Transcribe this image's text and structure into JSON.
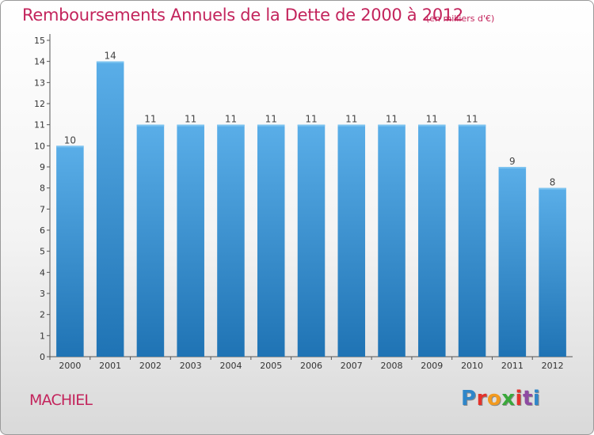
{
  "title": "Remboursements Annuels de la Dette de 2000 à 2012",
  "subtitle": "(en milliers d'€)",
  "commune": "MACHIEL",
  "logo": {
    "letters": [
      "P",
      "r",
      "o",
      "x",
      "i",
      "t",
      "i"
    ],
    "colors": [
      "#2f86c9",
      "#e4322b",
      "#f29a1f",
      "#3aa83a",
      "#e4322b",
      "#8e4aa2",
      "#2f86c9"
    ]
  },
  "colors": {
    "text_accent": "#c3245c",
    "bar_top": "#5aaee8",
    "bar_bottom": "#1f73b4"
  },
  "chart_data": {
    "type": "bar",
    "title": "Remboursements Annuels de la Dette de 2000 à 2012",
    "subtitle": "(en milliers d'€)",
    "categories": [
      "2000",
      "2001",
      "2002",
      "2003",
      "2004",
      "2005",
      "2006",
      "2007",
      "2008",
      "2009",
      "2010",
      "2011",
      "2012"
    ],
    "values": [
      10,
      14,
      11,
      11,
      11,
      11,
      11,
      11,
      11,
      11,
      11,
      9,
      8
    ],
    "value_labels": [
      "10",
      "14",
      "11",
      "11",
      "11",
      "11",
      "11",
      "11",
      "11",
      "11",
      "11",
      "9",
      "8"
    ],
    "ylim": [
      0,
      15
    ],
    "yticks": [
      "0",
      "1",
      "2",
      "3",
      "4",
      "5",
      "6",
      "7",
      "8",
      "9",
      "10",
      "11",
      "12",
      "13",
      "14",
      "15"
    ],
    "grid": false,
    "xlabel": "",
    "ylabel": ""
  }
}
